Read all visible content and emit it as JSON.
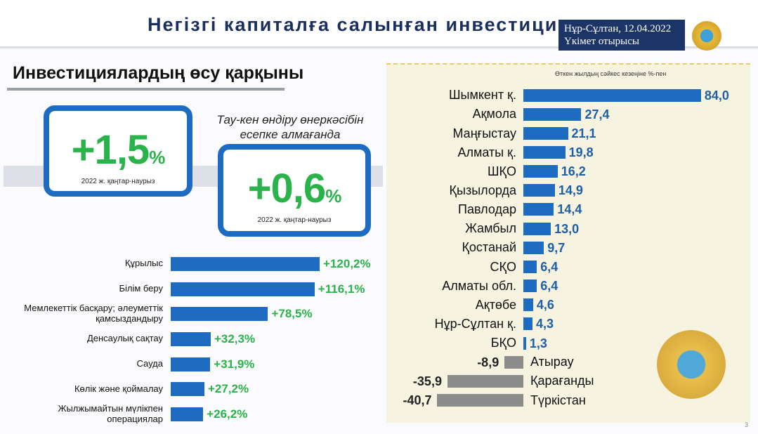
{
  "header": {
    "title": "Негізгі капиталға салынған инвестици",
    "place_date": "Нұр-Сұлтан, 12.04.2022",
    "event": "Үкімет отырысы"
  },
  "section_title": "Инвестициялардың өсу қарқыны",
  "note": "Тау-кен өндіру өнеркәсібін есепке алмағанда",
  "kpis": [
    {
      "value": "+1,5",
      "unit": "%",
      "period": "2022 ж. қаңтар-наурыз"
    },
    {
      "value": "+0,6",
      "unit": "%",
      "period": "2022 ж. қаңтар-наурыз"
    }
  ],
  "page_number": "3",
  "chart_data": [
    {
      "type": "bar",
      "orientation": "horizontal",
      "categories": [
        "Құрылыс",
        "Білім беру",
        "Мемлекеттік басқару; әлеуметтік қамсыздандыру",
        "Денсаулық сақтау",
        "Сауда",
        "Көлік және қоймалау",
        "Жылжымайтын мүлікпен операциялар"
      ],
      "values": [
        120.2,
        116.1,
        78.5,
        32.3,
        31.9,
        27.2,
        26.2
      ],
      "value_labels": [
        "+120,2%",
        "+116,1%",
        "+78,5%",
        "+32,3%",
        "+31,9%",
        "+27,2%",
        "+26,2%"
      ],
      "color": "#1d6cc2",
      "label_color": "#2ab34a"
    },
    {
      "type": "bar",
      "orientation": "horizontal",
      "subtitle": "Өткен жылдың сәйкес кезеңіне %-пен",
      "categories": [
        "Шымкент қ.",
        "Ақмола",
        "Маңғыстау",
        "Алматы қ.",
        "ШҚО",
        "Қызылорда",
        "Павлодар",
        "Жамбыл",
        "Қостанай",
        "СҚО",
        "Алматы обл.",
        "Ақтөбе",
        "Нұр-Сұлтан қ.",
        "БҚО",
        "Атырау",
        "Қарағанды",
        "Түркістан"
      ],
      "values": [
        84.0,
        27.4,
        21.1,
        19.8,
        16.2,
        14.9,
        14.4,
        13.0,
        9.7,
        6.4,
        6.4,
        4.6,
        4.3,
        1.3,
        -8.9,
        -35.9,
        -40.7
      ],
      "value_labels": [
        "84,0",
        "27,4",
        "21,1",
        "19,8",
        "16,2",
        "14,9",
        "14,4",
        "13,0",
        "9,7",
        "6,4",
        "6,4",
        "4,6",
        "4,3",
        "1,3",
        "-8,9",
        "-35,9",
        "-40,7"
      ],
      "color": "#1d6cc2",
      "negative_color": "#8c8c8c",
      "label_color": "#1d5fa6",
      "negative_label_color": "#222222"
    }
  ]
}
